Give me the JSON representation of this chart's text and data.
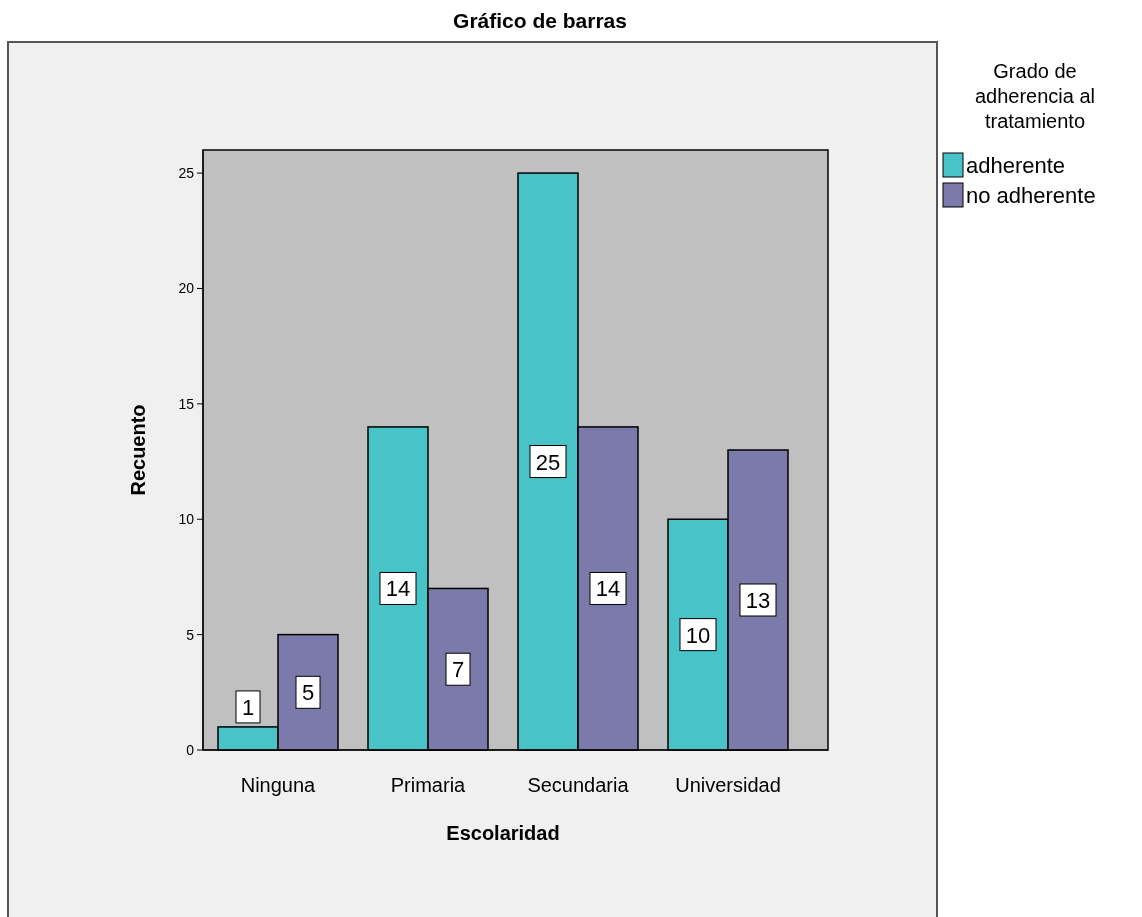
{
  "chart_data": {
    "type": "bar",
    "title": "Gráfico de barras",
    "xlabel": "Escolaridad",
    "ylabel": "Recuento",
    "legend_title": "Grado de adherencia al tratamiento",
    "categories": [
      "Ninguna",
      "Primaria",
      "Secundaria",
      "Universidad"
    ],
    "series": [
      {
        "name": "adherente",
        "color": "#48c3c8",
        "values": [
          1,
          14,
          25,
          10
        ]
      },
      {
        "name": "no adherente",
        "color": "#7b7aab",
        "values": [
          5,
          7,
          14,
          13
        ]
      }
    ],
    "ylim": [
      0,
      26
    ],
    "yticks": [
      0,
      5,
      10,
      15,
      20,
      25
    ],
    "data_labels": true,
    "legend": "top right",
    "grid": false
  }
}
